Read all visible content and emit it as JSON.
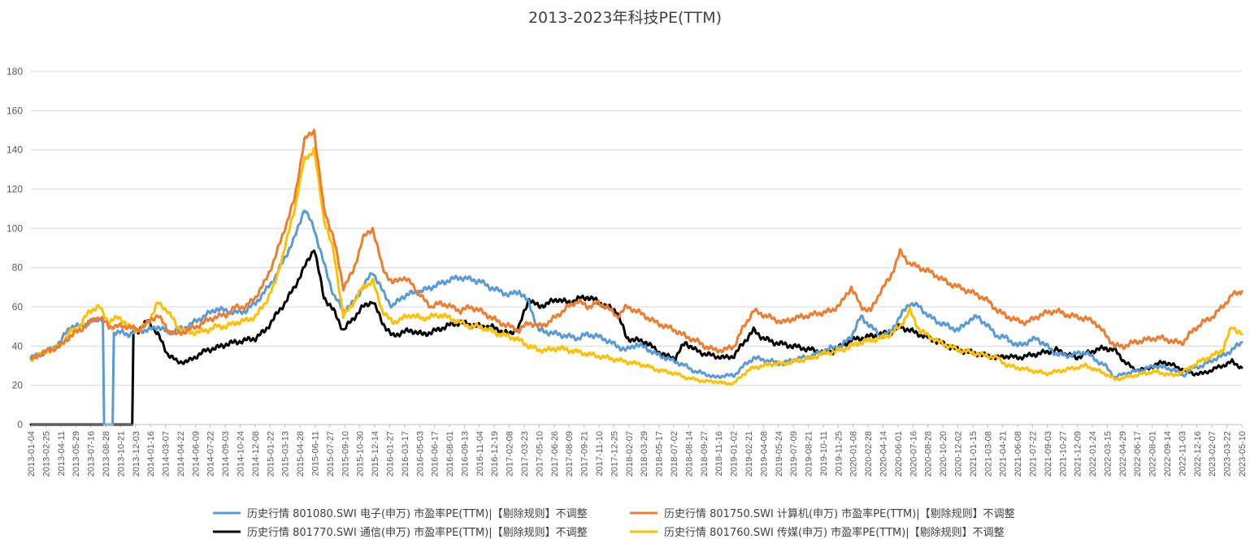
{
  "chart_data": {
    "type": "line",
    "title": "2013-2023年科技PE(TTM)",
    "xlabel": "",
    "ylabel": "",
    "ylim": [
      0,
      180
    ],
    "yticks": [
      0,
      20,
      40,
      60,
      80,
      100,
      120,
      140,
      160,
      180
    ],
    "grid": true,
    "legend_position": "bottom",
    "x_tick_labels": [
      "2013-01-04",
      "2013-02-25",
      "2013-04-11",
      "2013-05-29",
      "2013-07-16",
      "2013-08-28",
      "2013-10-21",
      "2013-12-03",
      "2014-01-16",
      "2014-03-07",
      "2014-04-22",
      "2014-06-09",
      "2014-07-22",
      "2014-09-03",
      "2014-10-24",
      "2014-12-08",
      "2015-01-22",
      "2015-03-13",
      "2015-04-28",
      "2015-06-11",
      "2015-07-27",
      "2015-09-10",
      "2015-10-30",
      "2015-12-14",
      "2016-01-27",
      "2016-03-17",
      "2016-05-03",
      "2016-06-17",
      "2016-08-01",
      "2016-09-13",
      "2016-11-04",
      "2016-12-19",
      "2017-02-08",
      "2017-03-23",
      "2017-05-10",
      "2017-06-26",
      "2017-08-09",
      "2017-09-21",
      "2017-11-10",
      "2017-12-25",
      "2018-02-07",
      "2018-03-29",
      "2018-05-17",
      "2018-07-02",
      "2018-08-14",
      "2018-09-27",
      "2018-11-16",
      "2019-01-02",
      "2019-02-21",
      "2019-04-08",
      "2019-05-24",
      "2019-07-09",
      "2019-08-21",
      "2019-10-11",
      "2019-11-25",
      "2020-01-08",
      "2020-02-28",
      "2020-04-14",
      "2020-06-01",
      "2020-07-16",
      "2020-08-28",
      "2020-10-20",
      "2020-12-02",
      "2021-01-15",
      "2021-03-08",
      "2021-04-21",
      "2021-06-08",
      "2021-07-22",
      "2021-09-03",
      "2021-10-27",
      "2021-12-09",
      "2022-01-24",
      "2022-03-15",
      "2022-04-29",
      "2022-06-17",
      "2022-08-01",
      "2022-09-14",
      "2022-11-03",
      "2022-12-16",
      "2023-02-07",
      "2023-03-22",
      "2023-05-10"
    ],
    "x": [
      "2013-01",
      "2013-02",
      "2013-03",
      "2013-04",
      "2013-05",
      "2013-06",
      "2013-07",
      "2013-08",
      "2013-09",
      "2013-10",
      "2013-11",
      "2013-12",
      "2014-01",
      "2014-02",
      "2014-03",
      "2014-04",
      "2014-05",
      "2014-06",
      "2014-07",
      "2014-08",
      "2014-09",
      "2014-10",
      "2014-11",
      "2014-12",
      "2015-01",
      "2015-02",
      "2015-03",
      "2015-04",
      "2015-05",
      "2015-06",
      "2015-07",
      "2015-08",
      "2015-09",
      "2015-10",
      "2015-11",
      "2015-12",
      "2016-01",
      "2016-02",
      "2016-03",
      "2016-04",
      "2016-05",
      "2016-06",
      "2016-07",
      "2016-08",
      "2016-09",
      "2016-10",
      "2016-11",
      "2016-12",
      "2017-01",
      "2017-02",
      "2017-03",
      "2017-04",
      "2017-05",
      "2017-06",
      "2017-07",
      "2017-08",
      "2017-09",
      "2017-10",
      "2017-11",
      "2017-12",
      "2018-01",
      "2018-02",
      "2018-03",
      "2018-04",
      "2018-05",
      "2018-06",
      "2018-07",
      "2018-08",
      "2018-09",
      "2018-10",
      "2018-11",
      "2018-12",
      "2019-01",
      "2019-02",
      "2019-03",
      "2019-04",
      "2019-05",
      "2019-06",
      "2019-07",
      "2019-08",
      "2019-09",
      "2019-10",
      "2019-11",
      "2019-12",
      "2020-01",
      "2020-02",
      "2020-03",
      "2020-04",
      "2020-05",
      "2020-06",
      "2020-07",
      "2020-08",
      "2020-09",
      "2020-10",
      "2020-11",
      "2020-12",
      "2021-01",
      "2021-02",
      "2021-03",
      "2021-04",
      "2021-05",
      "2021-06",
      "2021-07",
      "2021-08",
      "2021-09",
      "2021-10",
      "2021-11",
      "2021-12",
      "2022-01",
      "2022-02",
      "2022-03",
      "2022-04",
      "2022-05",
      "2022-06",
      "2022-07",
      "2022-08",
      "2022-09",
      "2022-10",
      "2022-11",
      "2022-12",
      "2023-01",
      "2023-02",
      "2023-03",
      "2023-04",
      "2023-05"
    ],
    "series": [
      {
        "name": "历史行情 801080.SWI 电子(申万) 市盈率PE(TTM)|【剔除规则】不调整",
        "color": "#5B9BD5",
        "values": [
          34,
          36,
          38,
          42,
          50,
          50,
          52,
          54,
          0,
          47,
          46,
          48,
          48,
          50,
          47,
          48,
          50,
          53,
          56,
          59,
          58,
          57,
          58,
          62,
          68,
          75,
          85,
          95,
          110,
          100,
          82,
          66,
          58,
          62,
          70,
          78,
          68,
          60,
          65,
          67,
          68,
          70,
          72,
          74,
          75,
          74,
          73,
          70,
          68,
          66,
          68,
          62,
          48,
          47,
          46,
          45,
          44,
          46,
          45,
          43,
          40,
          38,
          41,
          39,
          36,
          34,
          32,
          30,
          27,
          26,
          24,
          25,
          25,
          30,
          34,
          33,
          32,
          31,
          33,
          34,
          35,
          37,
          39,
          40,
          45,
          55,
          50,
          45,
          47,
          55,
          62,
          60,
          55,
          52,
          50,
          48,
          53,
          55,
          50,
          45,
          44,
          40,
          42,
          44,
          40,
          36,
          35,
          36,
          37,
          33,
          30,
          24,
          26,
          27,
          28,
          30,
          29,
          28,
          25,
          29,
          30,
          33,
          35,
          38,
          42
        ]
      },
      {
        "name": "历史行情 801750.SWI 计算机(申万) 市盈率PE(TTM)|【剔除规则】不调整",
        "color": "#ED7D31",
        "values": [
          33,
          36,
          38,
          40,
          45,
          48,
          52,
          55,
          50,
          50,
          50,
          48,
          52,
          56,
          48,
          46,
          48,
          50,
          53,
          55,
          56,
          60,
          60,
          65,
          73,
          85,
          100,
          115,
          145,
          150,
          110,
          95,
          70,
          78,
          95,
          100,
          80,
          72,
          75,
          72,
          65,
          60,
          62,
          60,
          58,
          60,
          58,
          55,
          52,
          50,
          48,
          52,
          50,
          52,
          56,
          60,
          63,
          60,
          62,
          60,
          55,
          60,
          58,
          55,
          52,
          50,
          48,
          45,
          43,
          40,
          38,
          38,
          40,
          50,
          58,
          56,
          54,
          52,
          54,
          55,
          56,
          57,
          58,
          62,
          70,
          60,
          58,
          68,
          75,
          88,
          82,
          80,
          78,
          75,
          72,
          70,
          68,
          66,
          63,
          58,
          55,
          53,
          52,
          55,
          57,
          58,
          56,
          55,
          54,
          52,
          46,
          40,
          40,
          42,
          43,
          44,
          44,
          42,
          42,
          48,
          52,
          55,
          60,
          66,
          68
        ]
      },
      {
        "name": "历史行情 801770.SWI 通信(申万) 市盈率PE(TTM)|【剔除规则】不调整",
        "color": "#000000",
        "values": [
          0,
          0,
          0,
          0,
          0,
          0,
          0,
          0,
          0,
          0,
          0,
          48,
          53,
          46,
          36,
          32,
          32,
          35,
          38,
          39,
          41,
          42,
          43,
          44,
          48,
          55,
          62,
          70,
          80,
          90,
          65,
          58,
          48,
          54,
          60,
          63,
          52,
          45,
          47,
          48,
          46,
          47,
          49,
          51,
          52,
          51,
          50,
          50,
          48,
          46,
          50,
          64,
          60,
          62,
          64,
          62,
          64,
          65,
          63,
          60,
          58,
          44,
          43,
          42,
          38,
          35,
          34,
          42,
          38,
          36,
          35,
          34,
          35,
          42,
          48,
          44,
          42,
          41,
          40,
          39,
          38,
          37,
          37,
          40,
          43,
          44,
          45,
          46,
          47,
          50,
          48,
          46,
          44,
          42,
          40,
          38,
          37,
          36,
          35,
          34,
          35,
          34,
          35,
          36,
          37,
          38,
          36,
          34,
          36,
          38,
          39,
          38,
          32,
          28,
          28,
          30,
          32,
          30,
          28,
          26,
          26,
          28,
          30,
          32,
          29
        ]
      },
      {
        "name": "历史行情 801760.SWI 传媒(申万) 市盈率PE(TTM)|【剔除规则】不调整",
        "color": "#FFC000",
        "values": [
          33,
          36,
          38,
          40,
          47,
          50,
          58,
          60,
          52,
          55,
          50,
          48,
          52,
          62,
          58,
          50,
          47,
          47,
          48,
          50,
          50,
          52,
          53,
          55,
          62,
          72,
          90,
          110,
          135,
          140,
          105,
          88,
          55,
          62,
          70,
          73,
          58,
          52,
          54,
          56,
          54,
          55,
          56,
          54,
          52,
          50,
          50,
          48,
          46,
          45,
          43,
          40,
          38,
          38,
          39,
          38,
          37,
          36,
          35,
          34,
          33,
          32,
          31,
          30,
          28,
          27,
          26,
          24,
          23,
          22,
          22,
          21,
          21,
          26,
          29,
          30,
          31,
          31,
          32,
          33,
          34,
          36,
          37,
          38,
          40,
          42,
          43,
          44,
          46,
          50,
          58,
          48,
          45,
          42,
          40,
          38,
          37,
          36,
          35,
          34,
          30,
          29,
          28,
          27,
          26,
          27,
          28,
          29,
          30,
          28,
          26,
          23,
          24,
          25,
          26,
          27,
          26,
          25,
          27,
          30,
          33,
          35,
          38,
          50,
          46
        ]
      }
    ]
  }
}
